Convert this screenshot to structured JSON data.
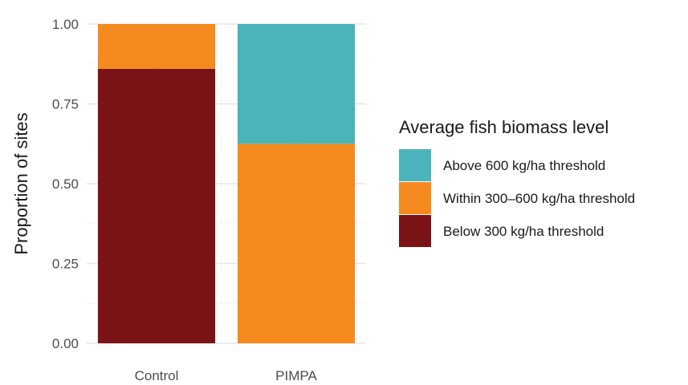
{
  "chart_data": {
    "type": "bar",
    "stacked": true,
    "normalized": true,
    "title": "",
    "xlabel": "",
    "ylabel": "Proportion of sites",
    "ylim": [
      0,
      1
    ],
    "yticks": [
      "0.00",
      "0.25",
      "0.50",
      "0.75",
      "1.00"
    ],
    "categories": [
      "Control",
      "PIMPA"
    ],
    "series": [
      {
        "name": "Below 300 kg/ha threshold",
        "color": "#7a1315",
        "values": [
          0.86,
          0.0
        ]
      },
      {
        "name": "Within 300–600 kg/ha threshold",
        "color": "#f58a1f",
        "values": [
          0.14,
          0.625
        ]
      },
      {
        "name": "Above 600 kg/ha threshold",
        "color": "#4bb3ba",
        "values": [
          0.0,
          0.375
        ]
      }
    ],
    "legend": {
      "title": "Average fish biomass level",
      "position": "right",
      "order": [
        "Above 600 kg/ha threshold",
        "Within 300–600 kg/ha threshold",
        "Below 300 kg/ha threshold"
      ]
    },
    "grid": true
  }
}
